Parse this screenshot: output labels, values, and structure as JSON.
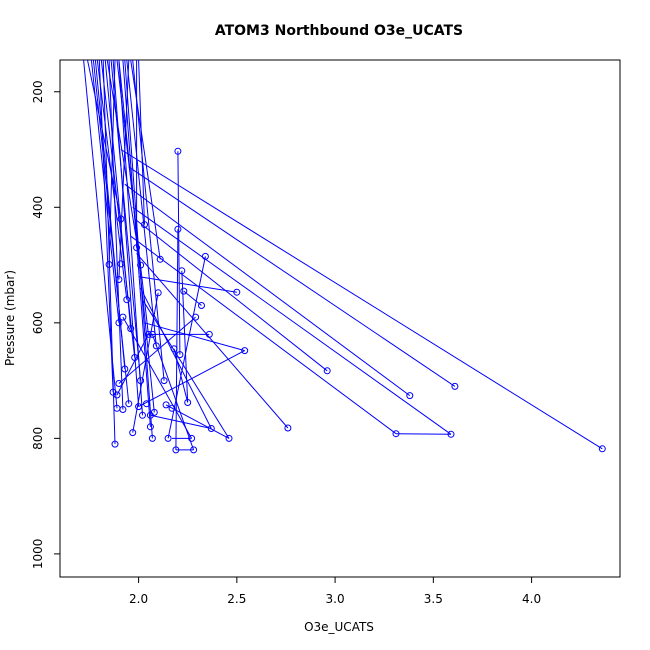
{
  "chart_data": {
    "type": "line",
    "title": "ATOM3 Northbound O3e_UCATS",
    "xlabel": "O3e_UCATS",
    "ylabel": "Pressure (mbar)",
    "xlim": [
      1.6,
      4.45
    ],
    "ylim": [
      1040,
      145
    ],
    "y_inverted": true,
    "x_ticks": [
      "2.0",
      "2.5",
      "3.0",
      "3.5",
      "4.0"
    ],
    "y_ticks": [
      "200",
      "400",
      "600",
      "800",
      "1000"
    ],
    "series_color": "#0000ff",
    "markers": "open-circle",
    "points": [
      [
        1.85,
        499
      ],
      [
        1.87,
        720
      ],
      [
        1.88,
        810
      ],
      [
        1.89,
        748
      ],
      [
        1.89,
        725
      ],
      [
        1.9,
        705
      ],
      [
        1.9,
        600
      ],
      [
        1.9,
        525
      ],
      [
        1.91,
        498
      ],
      [
        1.91,
        420
      ],
      [
        1.92,
        590
      ],
      [
        1.92,
        750
      ],
      [
        1.93,
        680
      ],
      [
        1.94,
        560
      ],
      [
        1.95,
        740
      ],
      [
        1.96,
        610
      ],
      [
        1.97,
        790
      ],
      [
        1.98,
        660
      ],
      [
        1.99,
        470
      ],
      [
        2.0,
        745
      ],
      [
        2.01,
        700
      ],
      [
        2.01,
        500
      ],
      [
        2.02,
        760
      ],
      [
        2.03,
        430
      ],
      [
        2.04,
        740
      ],
      [
        2.05,
        620
      ],
      [
        2.06,
        780
      ],
      [
        2.06,
        760
      ],
      [
        2.07,
        800
      ],
      [
        2.07,
        620
      ],
      [
        2.08,
        755
      ],
      [
        2.09,
        640
      ],
      [
        2.1,
        548
      ],
      [
        2.11,
        490
      ],
      [
        2.13,
        700
      ],
      [
        2.14,
        742
      ],
      [
        2.15,
        800
      ],
      [
        2.17,
        748
      ],
      [
        2.18,
        645
      ],
      [
        2.19,
        820
      ],
      [
        2.2,
        303
      ],
      [
        2.2,
        438
      ],
      [
        2.21,
        655
      ],
      [
        2.22,
        510
      ],
      [
        2.23,
        545
      ],
      [
        2.25,
        738
      ],
      [
        2.27,
        800
      ],
      [
        2.28,
        820
      ],
      [
        2.29,
        590
      ],
      [
        2.32,
        570
      ],
      [
        2.34,
        485
      ],
      [
        2.36,
        620
      ],
      [
        2.37,
        783
      ],
      [
        2.46,
        800
      ],
      [
        2.5,
        547
      ],
      [
        2.54,
        648
      ],
      [
        2.76,
        782
      ],
      [
        2.96,
        683
      ],
      [
        3.31,
        792
      ],
      [
        3.38,
        726
      ],
      [
        3.59,
        793
      ],
      [
        3.61,
        710
      ],
      [
        4.36,
        818
      ]
    ],
    "segments": [
      [
        [
          1.76,
          145
        ],
        [
          1.9,
          600
        ]
      ],
      [
        [
          1.8,
          145
        ],
        [
          1.87,
          720
        ]
      ],
      [
        [
          1.82,
          145
        ],
        [
          1.88,
          810
        ]
      ],
      [
        [
          1.85,
          145
        ],
        [
          1.92,
          750
        ]
      ],
      [
        [
          1.88,
          145
        ],
        [
          1.85,
          499
        ]
      ],
      [
        [
          1.9,
          145
        ],
        [
          2.02,
          760
        ]
      ],
      [
        [
          1.92,
          145
        ],
        [
          2.06,
          780
        ]
      ],
      [
        [
          1.95,
          145
        ],
        [
          1.9,
          525
        ]
      ],
      [
        [
          1.72,
          145
        ],
        [
          1.89,
          748
        ]
      ],
      [
        [
          1.78,
          145
        ],
        [
          1.93,
          680
        ]
      ],
      [
        [
          1.83,
          145
        ],
        [
          1.96,
          610
        ]
      ],
      [
        [
          1.87,
          145
        ],
        [
          2.0,
          745
        ]
      ],
      [
        [
          1.74,
          145
        ],
        [
          1.91,
          420
        ]
      ],
      [
        [
          1.79,
          145
        ],
        [
          1.94,
          560
        ]
      ],
      [
        [
          1.86,
          145
        ],
        [
          2.01,
          700
        ]
      ],
      [
        [
          1.93,
          145
        ],
        [
          2.07,
          800
        ]
      ],
      [
        [
          1.97,
          145
        ],
        [
          2.13,
          700
        ]
      ],
      [
        [
          2.0,
          145
        ],
        [
          2.03,
          430
        ]
      ],
      [
        [
          1.81,
          145
        ],
        [
          1.98,
          660
        ]
      ],
      [
        [
          1.89,
          145
        ],
        [
          2.05,
          620
        ]
      ],
      [
        [
          1.94,
          145
        ],
        [
          2.09,
          640
        ]
      ],
      [
        [
          1.77,
          145
        ],
        [
          1.95,
          740
        ]
      ],
      [
        [
          1.84,
          145
        ],
        [
          2.01,
          500
        ]
      ],
      [
        [
          1.9,
          145
        ],
        [
          2.08,
          755
        ]
      ],
      [
        [
          1.96,
          145
        ],
        [
          2.11,
          490
        ]
      ],
      [
        [
          1.99,
          145
        ],
        [
          1.99,
          470
        ]
      ],
      [
        [
          1.91,
          300
        ],
        [
          4.36,
          818
        ]
      ],
      [
        [
          1.95,
          330
        ],
        [
          3.61,
          710
        ]
      ],
      [
        [
          1.93,
          360
        ],
        [
          3.38,
          726
        ]
      ],
      [
        [
          1.97,
          400
        ],
        [
          3.59,
          793
        ]
      ],
      [
        [
          1.98,
          420
        ],
        [
          2.96,
          683
        ]
      ],
      [
        [
          1.96,
          450
        ],
        [
          3.31,
          792
        ]
      ],
      [
        [
          1.99,
          480
        ],
        [
          2.76,
          782
        ]
      ],
      [
        [
          2.0,
          520
        ],
        [
          2.5,
          547
        ]
      ],
      [
        [
          2.01,
          540
        ],
        [
          2.37,
          783
        ]
      ],
      [
        [
          2.02,
          560
        ],
        [
          2.46,
          800
        ]
      ],
      [
        [
          2.03,
          600
        ],
        [
          2.54,
          648
        ]
      ],
      [
        [
          2.04,
          620
        ],
        [
          2.36,
          620
        ]
      ],
      [
        [
          2.2,
          303
        ],
        [
          2.21,
          655
        ]
      ],
      [
        [
          2.2,
          438
        ],
        [
          2.19,
          820
        ]
      ],
      [
        [
          2.22,
          510
        ],
        [
          2.25,
          738
        ]
      ],
      [
        [
          2.23,
          545
        ],
        [
          2.32,
          570
        ]
      ],
      [
        [
          2.34,
          485
        ],
        [
          2.15,
          800
        ]
      ],
      [
        [
          3.31,
          792
        ],
        [
          3.59,
          793
        ]
      ],
      [
        [
          2.27,
          800
        ],
        [
          2.17,
          800
        ]
      ],
      [
        [
          2.28,
          820
        ],
        [
          2.19,
          820
        ]
      ],
      [
        [
          1.9,
          705
        ],
        [
          2.29,
          590
        ]
      ],
      [
        [
          1.92,
          590
        ],
        [
          2.27,
          800
        ]
      ],
      [
        [
          2.0,
          745
        ],
        [
          2.54,
          648
        ]
      ],
      [
        [
          2.06,
          760
        ],
        [
          2.37,
          783
        ]
      ],
      [
        [
          1.89,
          725
        ],
        [
          2.05,
          620
        ]
      ],
      [
        [
          2.07,
          620
        ],
        [
          2.28,
          820
        ]
      ],
      [
        [
          2.1,
          548
        ],
        [
          1.97,
          790
        ]
      ],
      [
        [
          2.14,
          742
        ],
        [
          2.46,
          800
        ]
      ],
      [
        [
          2.18,
          645
        ],
        [
          2.25,
          738
        ]
      ]
    ]
  }
}
